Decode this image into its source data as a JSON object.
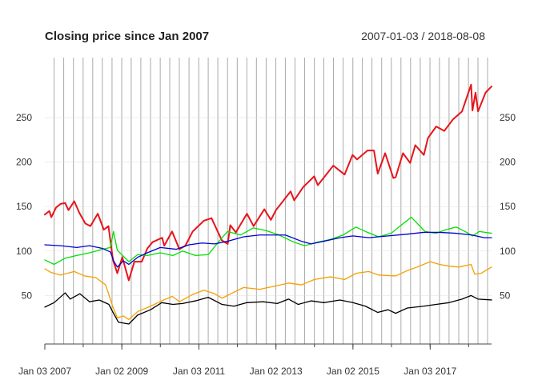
{
  "chart_data": {
    "type": "line",
    "title": "Closing price since Jan 2007",
    "date_range_label": "2007-01-03 / 2018-08-08",
    "x_range": [
      "2007-01-03",
      "2018-08-08"
    ],
    "ylim": [
      0,
      290
    ],
    "y_ticks": [
      50,
      100,
      150,
      200,
      250
    ],
    "y_tick_labels": [
      "50",
      "100",
      "150",
      "200",
      "250"
    ],
    "x_tick_labels": [
      {
        "date": "2007-01-03",
        "label": "Jan 03 2007"
      },
      {
        "date": "2009-01-02",
        "label": "Jan 02 2009"
      },
      {
        "date": "2011-01-03",
        "label": "Jan 03 2011"
      },
      {
        "date": "2013-01-02",
        "label": "Jan 02 2013"
      },
      {
        "date": "2015-01-02",
        "label": "Jan 02 2015"
      },
      {
        "date": "2017-01-03",
        "label": "Jan 03 2017"
      }
    ],
    "grid": true,
    "legend": "none",
    "series": [
      {
        "color": "#E8141B",
        "points": [
          [
            "2007-01-03",
            141
          ],
          [
            "2007-02-15",
            145
          ],
          [
            "2007-03-05",
            138
          ],
          [
            "2007-04-20",
            149
          ],
          [
            "2007-06-01",
            153
          ],
          [
            "2007-07-15",
            154
          ],
          [
            "2007-08-15",
            146
          ],
          [
            "2007-10-09",
            156
          ],
          [
            "2007-11-26",
            143
          ],
          [
            "2008-01-22",
            131
          ],
          [
            "2008-03-10",
            128
          ],
          [
            "2008-05-19",
            142
          ],
          [
            "2008-07-15",
            124
          ],
          [
            "2008-08-28",
            128
          ],
          [
            "2008-10-10",
            90
          ],
          [
            "2008-11-20",
            75
          ],
          [
            "2009-01-06",
            93
          ],
          [
            "2009-03-09",
            67
          ],
          [
            "2009-05-01",
            88
          ],
          [
            "2009-07-10",
            88
          ],
          [
            "2009-09-01",
            103
          ],
          [
            "2009-10-20",
            110
          ],
          [
            "2010-01-19",
            115
          ],
          [
            "2010-02-08",
            106
          ],
          [
            "2010-04-23",
            122
          ],
          [
            "2010-07-02",
            102
          ],
          [
            "2010-08-27",
            106
          ],
          [
            "2010-11-05",
            122
          ],
          [
            "2011-02-18",
            134
          ],
          [
            "2011-05-02",
            137
          ],
          [
            "2011-08-08",
            112
          ],
          [
            "2011-10-03",
            108
          ],
          [
            "2011-10-27",
            129
          ],
          [
            "2011-12-19",
            121
          ],
          [
            "2012-04-02",
            142
          ],
          [
            "2012-06-04",
            128
          ],
          [
            "2012-09-14",
            147
          ],
          [
            "2012-11-15",
            135
          ],
          [
            "2013-01-02",
            146
          ],
          [
            "2013-05-21",
            167
          ],
          [
            "2013-06-24",
            157
          ],
          [
            "2013-09-18",
            172
          ],
          [
            "2013-12-31",
            184
          ],
          [
            "2014-02-03",
            174
          ],
          [
            "2014-06-30",
            196
          ],
          [
            "2014-10-15",
            186
          ],
          [
            "2014-12-29",
            208
          ],
          [
            "2015-02-10",
            203
          ],
          [
            "2015-05-20",
            213
          ],
          [
            "2015-07-20",
            213
          ],
          [
            "2015-08-25",
            187
          ],
          [
            "2015-11-03",
            210
          ],
          [
            "2016-01-20",
            182
          ],
          [
            "2016-02-11",
            183
          ],
          [
            "2016-04-20",
            210
          ],
          [
            "2016-06-27",
            199
          ],
          [
            "2016-08-15",
            219
          ],
          [
            "2016-11-04",
            208
          ],
          [
            "2016-12-13",
            227
          ],
          [
            "2017-03-01",
            240
          ],
          [
            "2017-05-17",
            235
          ],
          [
            "2017-08-07",
            248
          ],
          [
            "2017-11-01",
            257
          ],
          [
            "2018-01-26",
            287
          ],
          [
            "2018-02-08",
            258
          ],
          [
            "2018-03-09",
            278
          ],
          [
            "2018-04-02",
            257
          ],
          [
            "2018-06-12",
            278
          ],
          [
            "2018-08-08",
            285
          ]
        ]
      },
      {
        "color": "#00E000",
        "points": [
          [
            "2007-01-03",
            90
          ],
          [
            "2007-04-01",
            85
          ],
          [
            "2007-07-15",
            92
          ],
          [
            "2007-11-01",
            95
          ],
          [
            "2008-03-01",
            98
          ],
          [
            "2008-07-01",
            102
          ],
          [
            "2008-09-15",
            104
          ],
          [
            "2008-10-15",
            122
          ],
          [
            "2008-11-20",
            101
          ],
          [
            "2009-03-09",
            88
          ],
          [
            "2009-06-01",
            96
          ],
          [
            "2009-09-01",
            95
          ],
          [
            "2010-01-01",
            98
          ],
          [
            "2010-05-01",
            95
          ],
          [
            "2010-08-01",
            100
          ],
          [
            "2010-12-01",
            95
          ],
          [
            "2011-04-01",
            96
          ],
          [
            "2011-08-10",
            115
          ],
          [
            "2011-10-01",
            122
          ],
          [
            "2012-02-01",
            118
          ],
          [
            "2012-06-01",
            126
          ],
          [
            "2012-10-01",
            123
          ],
          [
            "2013-02-01",
            118
          ],
          [
            "2013-06-21",
            110
          ],
          [
            "2013-10-01",
            106
          ],
          [
            "2014-02-01",
            110
          ],
          [
            "2014-06-01",
            113
          ],
          [
            "2014-10-01",
            118
          ],
          [
            "2015-01-30",
            127
          ],
          [
            "2015-05-01",
            122
          ],
          [
            "2015-09-01",
            116
          ],
          [
            "2016-01-01",
            120
          ],
          [
            "2016-03-01",
            126
          ],
          [
            "2016-07-08",
            138
          ],
          [
            "2016-11-15",
            122
          ],
          [
            "2017-03-01",
            120
          ],
          [
            "2017-06-01",
            124
          ],
          [
            "2017-09-08",
            127
          ],
          [
            "2017-12-15",
            121
          ],
          [
            "2018-02-08",
            117
          ],
          [
            "2018-04-15",
            122
          ],
          [
            "2018-08-08",
            120
          ]
        ]
      },
      {
        "color": "#0000D0",
        "points": [
          [
            "2007-01-03",
            107
          ],
          [
            "2007-06-01",
            106
          ],
          [
            "2007-11-01",
            104
          ],
          [
            "2008-03-01",
            106
          ],
          [
            "2008-07-01",
            103
          ],
          [
            "2008-09-15",
            99
          ],
          [
            "2008-10-20",
            88
          ],
          [
            "2008-11-20",
            82
          ],
          [
            "2009-01-15",
            89
          ],
          [
            "2009-03-09",
            85
          ],
          [
            "2009-06-01",
            93
          ],
          [
            "2009-09-01",
            98
          ],
          [
            "2010-01-01",
            104
          ],
          [
            "2010-06-01",
            102
          ],
          [
            "2010-10-01",
            107
          ],
          [
            "2011-02-01",
            109
          ],
          [
            "2011-06-01",
            108
          ],
          [
            "2011-10-01",
            111
          ],
          [
            "2012-03-01",
            116
          ],
          [
            "2012-08-01",
            118
          ],
          [
            "2012-12-01",
            118
          ],
          [
            "2013-04-01",
            118
          ],
          [
            "2013-09-01",
            111
          ],
          [
            "2013-12-01",
            108
          ],
          [
            "2014-04-01",
            111
          ],
          [
            "2014-09-01",
            115
          ],
          [
            "2015-01-01",
            117
          ],
          [
            "2015-06-01",
            115
          ],
          [
            "2015-12-01",
            117
          ],
          [
            "2016-06-01",
            119
          ],
          [
            "2016-11-01",
            121
          ],
          [
            "2017-04-01",
            121
          ],
          [
            "2017-09-01",
            120
          ],
          [
            "2018-02-01",
            118
          ],
          [
            "2018-06-01",
            115
          ],
          [
            "2018-08-08",
            115
          ]
        ]
      },
      {
        "color": "#F5A000",
        "points": [
          [
            "2007-01-03",
            80
          ],
          [
            "2007-03-01",
            76
          ],
          [
            "2007-06-01",
            73
          ],
          [
            "2007-10-09",
            77
          ],
          [
            "2008-01-15",
            72
          ],
          [
            "2008-05-01",
            70
          ],
          [
            "2008-08-01",
            62
          ],
          [
            "2008-10-10",
            37
          ],
          [
            "2008-11-20",
            25
          ],
          [
            "2009-01-15",
            27
          ],
          [
            "2009-03-09",
            23
          ],
          [
            "2009-06-01",
            32
          ],
          [
            "2009-10-01",
            38
          ],
          [
            "2010-01-15",
            44
          ],
          [
            "2010-04-26",
            49
          ],
          [
            "2010-07-02",
            43
          ],
          [
            "2010-11-01",
            51
          ],
          [
            "2011-02-18",
            56
          ],
          [
            "2011-06-01",
            52
          ],
          [
            "2011-08-10",
            47
          ],
          [
            "2011-11-01",
            52
          ],
          [
            "2012-03-01",
            59
          ],
          [
            "2012-08-01",
            57
          ],
          [
            "2012-12-01",
            60
          ],
          [
            "2013-05-01",
            64
          ],
          [
            "2013-09-01",
            62
          ],
          [
            "2014-01-01",
            68
          ],
          [
            "2014-06-01",
            71
          ],
          [
            "2014-10-15",
            68
          ],
          [
            "2015-02-01",
            75
          ],
          [
            "2015-06-01",
            77
          ],
          [
            "2015-09-01",
            73
          ],
          [
            "2016-02-11",
            72
          ],
          [
            "2016-06-01",
            78
          ],
          [
            "2016-09-01",
            82
          ],
          [
            "2017-01-03",
            88
          ],
          [
            "2017-04-01",
            85
          ],
          [
            "2017-07-01",
            83
          ],
          [
            "2017-10-01",
            82
          ],
          [
            "2018-01-26",
            85
          ],
          [
            "2018-03-01",
            74
          ],
          [
            "2018-05-01",
            75
          ],
          [
            "2018-08-08",
            82
          ]
        ]
      },
      {
        "color": "#000000",
        "points": [
          [
            "2007-01-03",
            37
          ],
          [
            "2007-04-01",
            42
          ],
          [
            "2007-07-15",
            53
          ],
          [
            "2007-09-01",
            46
          ],
          [
            "2007-12-01",
            52
          ],
          [
            "2008-03-01",
            43
          ],
          [
            "2008-06-01",
            45
          ],
          [
            "2008-09-01",
            40
          ],
          [
            "2008-10-15",
            30
          ],
          [
            "2008-12-01",
            20
          ],
          [
            "2009-03-09",
            18
          ],
          [
            "2009-06-01",
            28
          ],
          [
            "2009-10-01",
            34
          ],
          [
            "2010-01-15",
            42
          ],
          [
            "2010-05-01",
            40
          ],
          [
            "2010-08-01",
            41
          ],
          [
            "2010-12-01",
            44
          ],
          [
            "2011-04-01",
            48
          ],
          [
            "2011-08-10",
            40
          ],
          [
            "2011-12-01",
            38
          ],
          [
            "2012-04-01",
            42
          ],
          [
            "2012-09-01",
            43
          ],
          [
            "2013-01-15",
            41
          ],
          [
            "2013-05-01",
            46
          ],
          [
            "2013-08-01",
            40
          ],
          [
            "2013-12-01",
            44
          ],
          [
            "2014-04-01",
            42
          ],
          [
            "2014-09-01",
            45
          ],
          [
            "2015-01-01",
            42
          ],
          [
            "2015-05-01",
            38
          ],
          [
            "2015-08-25",
            31
          ],
          [
            "2015-12-01",
            34
          ],
          [
            "2016-02-11",
            30
          ],
          [
            "2016-06-01",
            36
          ],
          [
            "2016-11-01",
            38
          ],
          [
            "2017-03-01",
            40
          ],
          [
            "2017-07-01",
            42
          ],
          [
            "2017-11-01",
            46
          ],
          [
            "2018-01-26",
            50
          ],
          [
            "2018-04-01",
            46
          ],
          [
            "2018-08-08",
            45
          ]
        ]
      }
    ]
  }
}
